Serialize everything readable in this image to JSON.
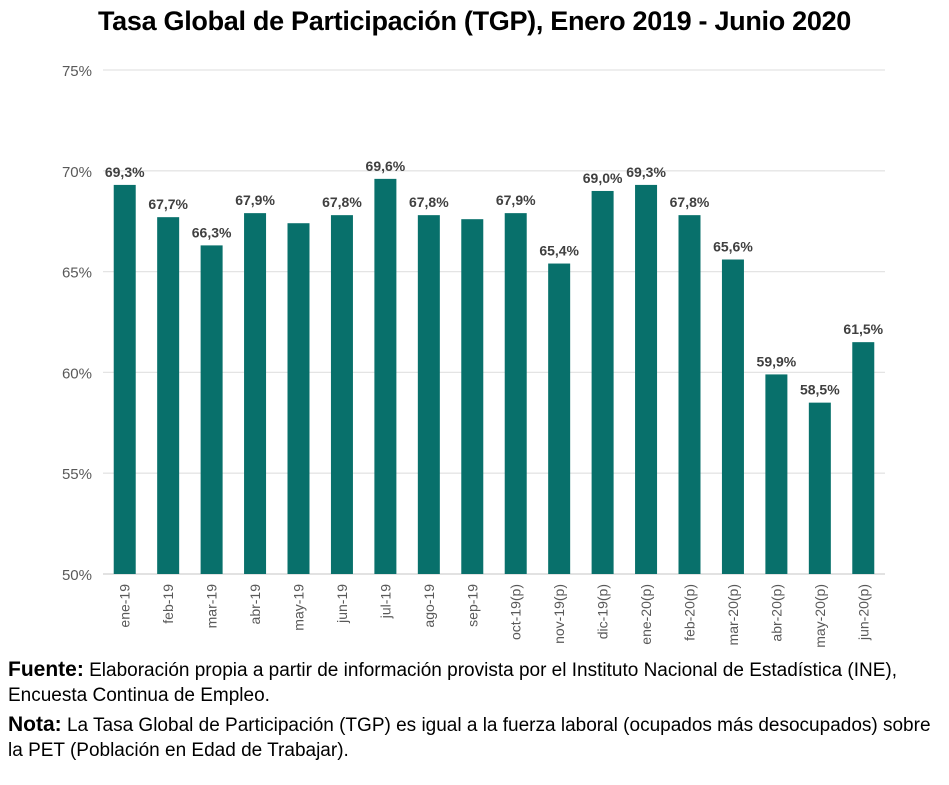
{
  "title": "Tasa Global de Participación (TGP), Enero 2019 - Junio 2020",
  "colors": {
    "bar": "#08706B",
    "grid": "#E4E4E4",
    "axis_text": "#595959",
    "label_text": "#404040"
  },
  "chart_data": {
    "type": "bar",
    "title": "Tasa Global de Participación (TGP), Enero 2019 - Junio 2020",
    "categories": [
      "ene-19",
      "feb-19",
      "mar-19",
      "abr-19",
      "may-19",
      "jun-19",
      "jul-19",
      "ago-19",
      "sep-19",
      "oct-19(p)",
      "nov-19(p)",
      "dic-19(p)",
      "ene-20(p)",
      "feb-20(p)",
      "mar-20(p)",
      "abr-20(p)",
      "may-20(p)",
      "jun-20(p)"
    ],
    "values": [
      69.3,
      67.7,
      66.3,
      67.9,
      67.4,
      67.8,
      69.6,
      67.8,
      67.6,
      67.9,
      65.4,
      69.0,
      69.3,
      67.8,
      65.6,
      59.9,
      58.5,
      61.5
    ],
    "data_labels": [
      "69,3%",
      "67,7%",
      "66,3%",
      "67,9%",
      "",
      "67,8%",
      "69,6%",
      "67,8%",
      "",
      "67,9%",
      "65,4%",
      "69,0%",
      "69,3%",
      "67,8%",
      "65,6%",
      "59,9%",
      "58,5%",
      "61,5%"
    ],
    "ylim": [
      50,
      75
    ],
    "yticks": [
      50,
      55,
      60,
      65,
      70,
      75
    ],
    "ytick_labels": [
      "50%",
      "55%",
      "60%",
      "65%",
      "70%",
      "75%"
    ],
    "grid": true,
    "xlabel": "",
    "ylabel": ""
  },
  "notes": {
    "fuente_label": "Fuente:",
    "fuente_text": "  Elaboración propia a partir de información provista por el Instituto Nacional de Estadística (INE), Encuesta Continua de Empleo.",
    "nota_label": "Nota:",
    "nota_text": " La Tasa Global de Participación (TGP) es igual a la fuerza laboral (ocupados más desocupados) sobre la PET (Población en Edad de Trabajar)."
  }
}
